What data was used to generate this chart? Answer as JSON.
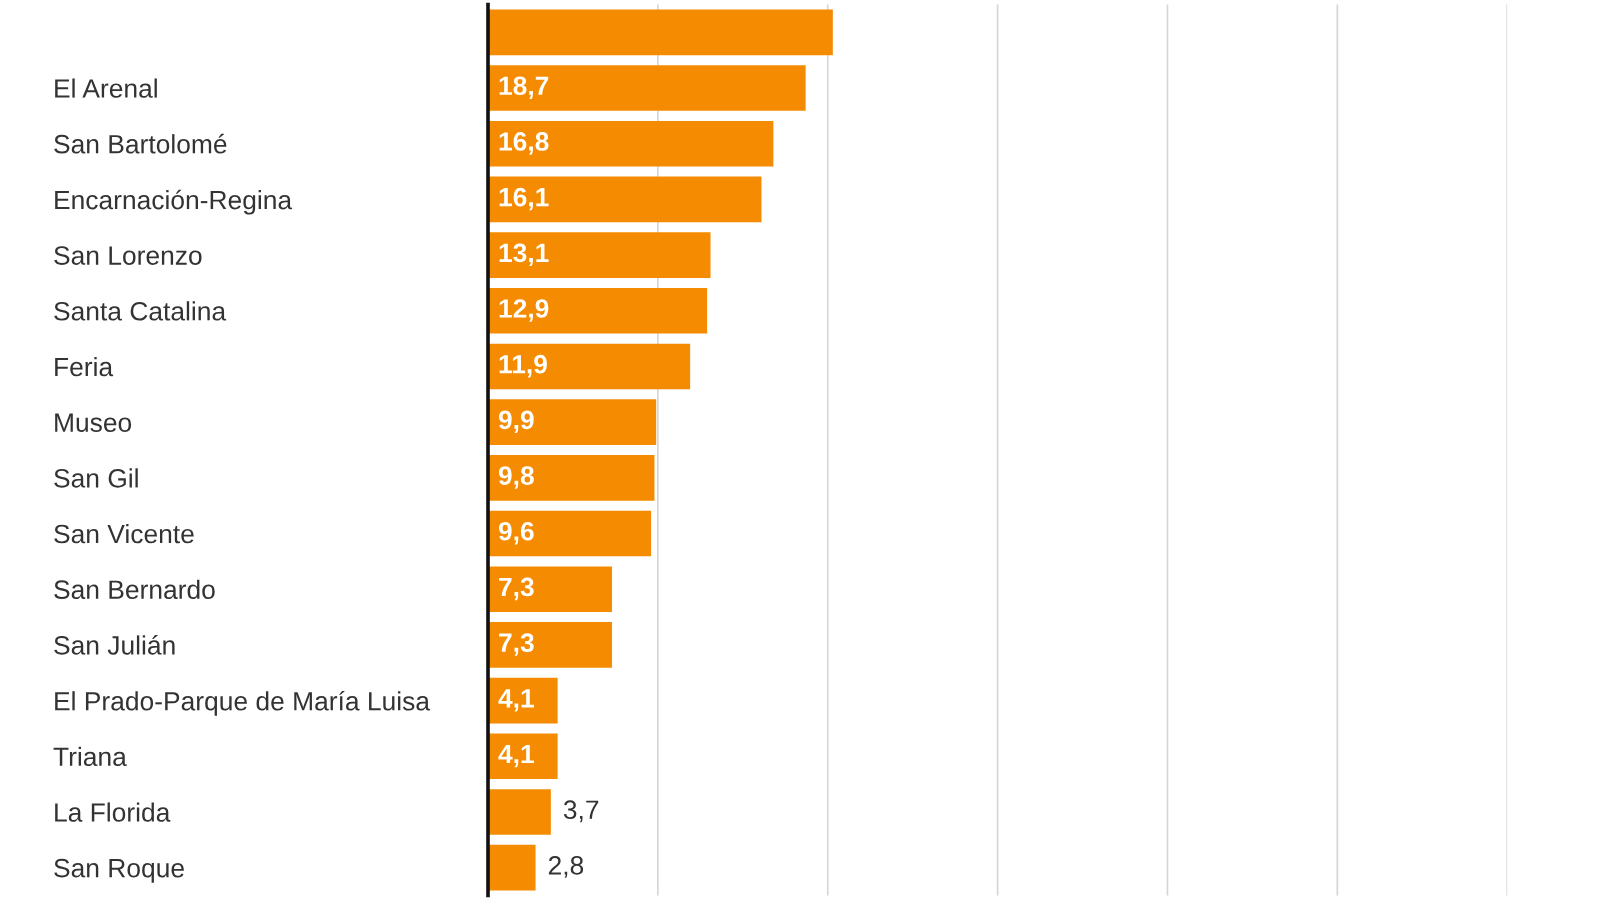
{
  "chart_data": {
    "type": "bar",
    "orientation": "horizontal",
    "categories": [
      null,
      "El Arenal",
      "San Bartolomé",
      "Encarnación-Regina",
      "San Lorenzo",
      "Santa Catalina",
      "Feria",
      "Museo",
      "San Gil",
      "San Vicente",
      "San Bernardo",
      "San Julián",
      "El Prado-Parque de María Luisa",
      "Triana",
      "La Florida",
      "San Roque"
    ],
    "values": [
      20.3,
      18.7,
      16.8,
      16.1,
      13.1,
      12.9,
      11.9,
      9.9,
      9.8,
      9.6,
      7.3,
      7.3,
      4.1,
      4.1,
      3.7,
      2.8
    ],
    "value_labels": [
      null,
      "18,7",
      "16,8",
      "16,1",
      "13,1",
      "12,9",
      "11,9",
      "9,9",
      "9,8",
      "9,6",
      "7,3",
      "7,3",
      "4,1",
      "4,1",
      "3,7",
      "2,8"
    ],
    "color": "#f58b00",
    "xlim": [
      0,
      60
    ],
    "xticks": [
      {
        "value": 10,
        "label": null
      },
      {
        "value": 20,
        "label": null
      },
      {
        "value": 30,
        "label": null
      },
      {
        "value": 40,
        "label": null
      },
      {
        "value": 50,
        "label": null
      },
      {
        "value": 60,
        "label": null
      }
    ],
    "grid": "x",
    "tick_labels": "y"
  }
}
